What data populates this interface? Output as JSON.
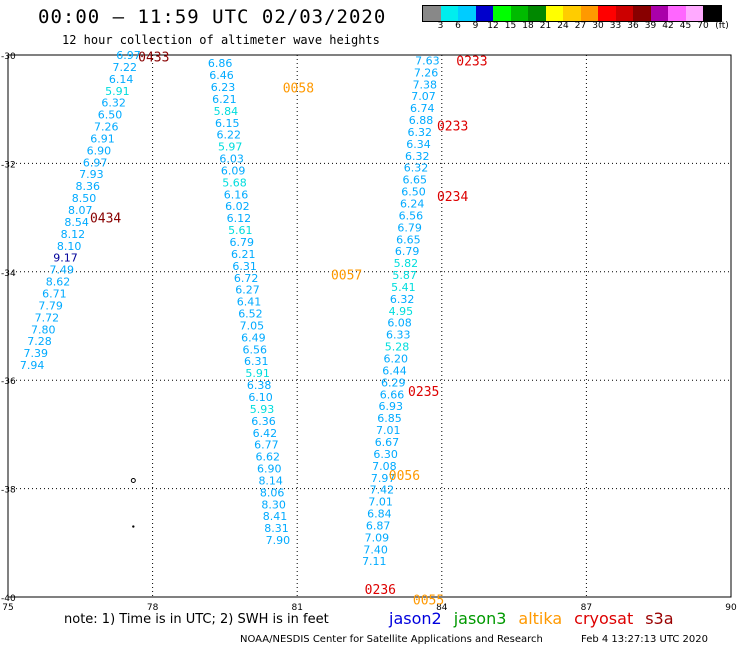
{
  "header": {
    "title": "00:00 – 11:59 UTC 02/03/2020",
    "subtitle": "12 hour collection of altimeter wave heights"
  },
  "scale": {
    "unit": "(ft)",
    "ticks": [
      "3",
      "6",
      "9",
      "12",
      "15",
      "18",
      "21",
      "24",
      "27",
      "30",
      "33",
      "36",
      "39",
      "42",
      "45",
      "70"
    ],
    "colors": [
      "#888888",
      "#00eeee",
      "#00ccff",
      "#0000cc",
      "#00ff00",
      "#00bb00",
      "#008800",
      "#ffff00",
      "#ffcc00",
      "#ff9900",
      "#ff0000",
      "#cc0000",
      "#880000",
      "#aa00aa",
      "#ff66ff",
      "#ffaaff",
      "#000000"
    ]
  },
  "footer": {
    "note": "note: 1) Time is in UTC; 2) SWH is in feet",
    "credit": "NOAA/NESDIS Center for Satellite Applications and Research",
    "timestamp": "Feb  4 13:27:13 UTC 2020",
    "legend": [
      {
        "name": "jason2",
        "color": "#0000dd"
      },
      {
        "name": "jason3",
        "color": "#009900"
      },
      {
        "name": "altika",
        "color": "#ff9900"
      },
      {
        "name": "cryosat",
        "color": "#dd0000"
      },
      {
        "name": "s3a",
        "color": "#990000"
      }
    ]
  },
  "chart_data": {
    "type": "map",
    "lon_range": [
      75,
      90
    ],
    "lat_range": [
      -40,
      -30
    ],
    "x_ticks": [
      "75",
      "78",
      "81",
      "84",
      "87",
      "90"
    ],
    "y_ticks": [
      "-30",
      "-32",
      "-34",
      "-36",
      "-38",
      "-40"
    ],
    "grid": true,
    "track_labels": [
      {
        "text": "0433",
        "lon": 77.7,
        "lat": -30.03,
        "color": "#880000"
      },
      {
        "text": "0434",
        "lon": 76.7,
        "lat": -33.0,
        "color": "#880000"
      },
      {
        "text": "0058",
        "lon": 80.7,
        "lat": -30.6,
        "color": "#ff9900"
      },
      {
        "text": "0057",
        "lon": 81.7,
        "lat": -34.05,
        "color": "#ff9900"
      },
      {
        "text": "0056",
        "lon": 82.9,
        "lat": -37.75,
        "color": "#ff9900"
      },
      {
        "text": "0055",
        "lon": 83.4,
        "lat": -40.05,
        "color": "#ff9900"
      },
      {
        "text": "0233",
        "lon": 84.3,
        "lat": -30.1,
        "color": "#dd0000"
      },
      {
        "text": "0233",
        "lon": 83.9,
        "lat": -31.3,
        "color": "#dd0000"
      },
      {
        "text": "0234",
        "lon": 83.9,
        "lat": -32.6,
        "color": "#dd0000"
      },
      {
        "text": "0235",
        "lon": 83.3,
        "lat": -36.2,
        "color": "#dd0000"
      },
      {
        "text": "0236",
        "lon": 82.4,
        "lat": -39.85,
        "color": "#dd0000"
      }
    ],
    "tracks": [
      {
        "name": "s3a-0433",
        "lat_start": -30,
        "lat_step": 0.22,
        "lon_start": 77.5,
        "lon_end": 75.5,
        "values": [
          "6.97",
          "7.22",
          "6.14",
          "5.91",
          "6.32",
          "6.50",
          "7.26",
          "6.91",
          "6.90",
          "6.97",
          "7.93",
          "8.36",
          "8.50",
          "8.07",
          "8.54",
          "8.12",
          "8.10",
          "9.17",
          "7.49",
          "8.62",
          "6.71",
          "7.79",
          "7.72",
          "7.80",
          "7.28",
          "7.39",
          "7.94"
        ]
      },
      {
        "name": "altika-0058",
        "lat_start": -30.15,
        "lat_step": 0.22,
        "lon_start": 79.4,
        "lon_end": 80.6,
        "values": [
          "6.86",
          "6.46",
          "6.23",
          "6.21",
          "5.84",
          "6.15",
          "6.22",
          "5.97",
          "6.03",
          "6.09",
          "5.68",
          "6.16",
          "6.02",
          "6.12",
          "5.61",
          "6.79",
          "6.21",
          "6.31",
          "6.72",
          "6.27",
          "6.41",
          "6.52",
          "7.05",
          "6.49",
          "6.56",
          "6.31",
          "5.91",
          "6.38",
          "6.10",
          "5.93",
          "6.36",
          "6.42",
          "6.77",
          "6.62",
          "6.90",
          "8.14",
          "8.06",
          "8.30",
          "8.41",
          "8.31",
          "7.90"
        ]
      },
      {
        "name": "cryosat-0233",
        "lat_start": -30.1,
        "lat_step": 0.22,
        "lon_start": 83.7,
        "lon_end": 82.6,
        "values": [
          "7.63",
          "7.26",
          "7.38",
          "7.07",
          "6.74",
          "6.88",
          "6.32",
          "6.34",
          "6.32",
          "6.32",
          "6.65",
          "6.50",
          "6.24",
          "6.56",
          "6.79",
          "6.65",
          "6.79",
          "5.82",
          "5.87",
          "5.41",
          "6.32",
          "4.95",
          "6.08",
          "6.33",
          "5.28",
          "6.20",
          "6.44",
          "6.29",
          "6.66",
          "6.93",
          "6.85",
          "7.01",
          "6.67",
          "6.30",
          "7.08",
          "7.97",
          "7.42",
          "7.01",
          "6.84",
          "6.87",
          "7.09",
          "7.40",
          "7.11"
        ]
      }
    ],
    "markers": [
      {
        "lon": 77.6,
        "lat": -37.85,
        "symbol": "o"
      },
      {
        "lon": 77.6,
        "lat": -38.7,
        "symbol": "dot"
      }
    ]
  }
}
